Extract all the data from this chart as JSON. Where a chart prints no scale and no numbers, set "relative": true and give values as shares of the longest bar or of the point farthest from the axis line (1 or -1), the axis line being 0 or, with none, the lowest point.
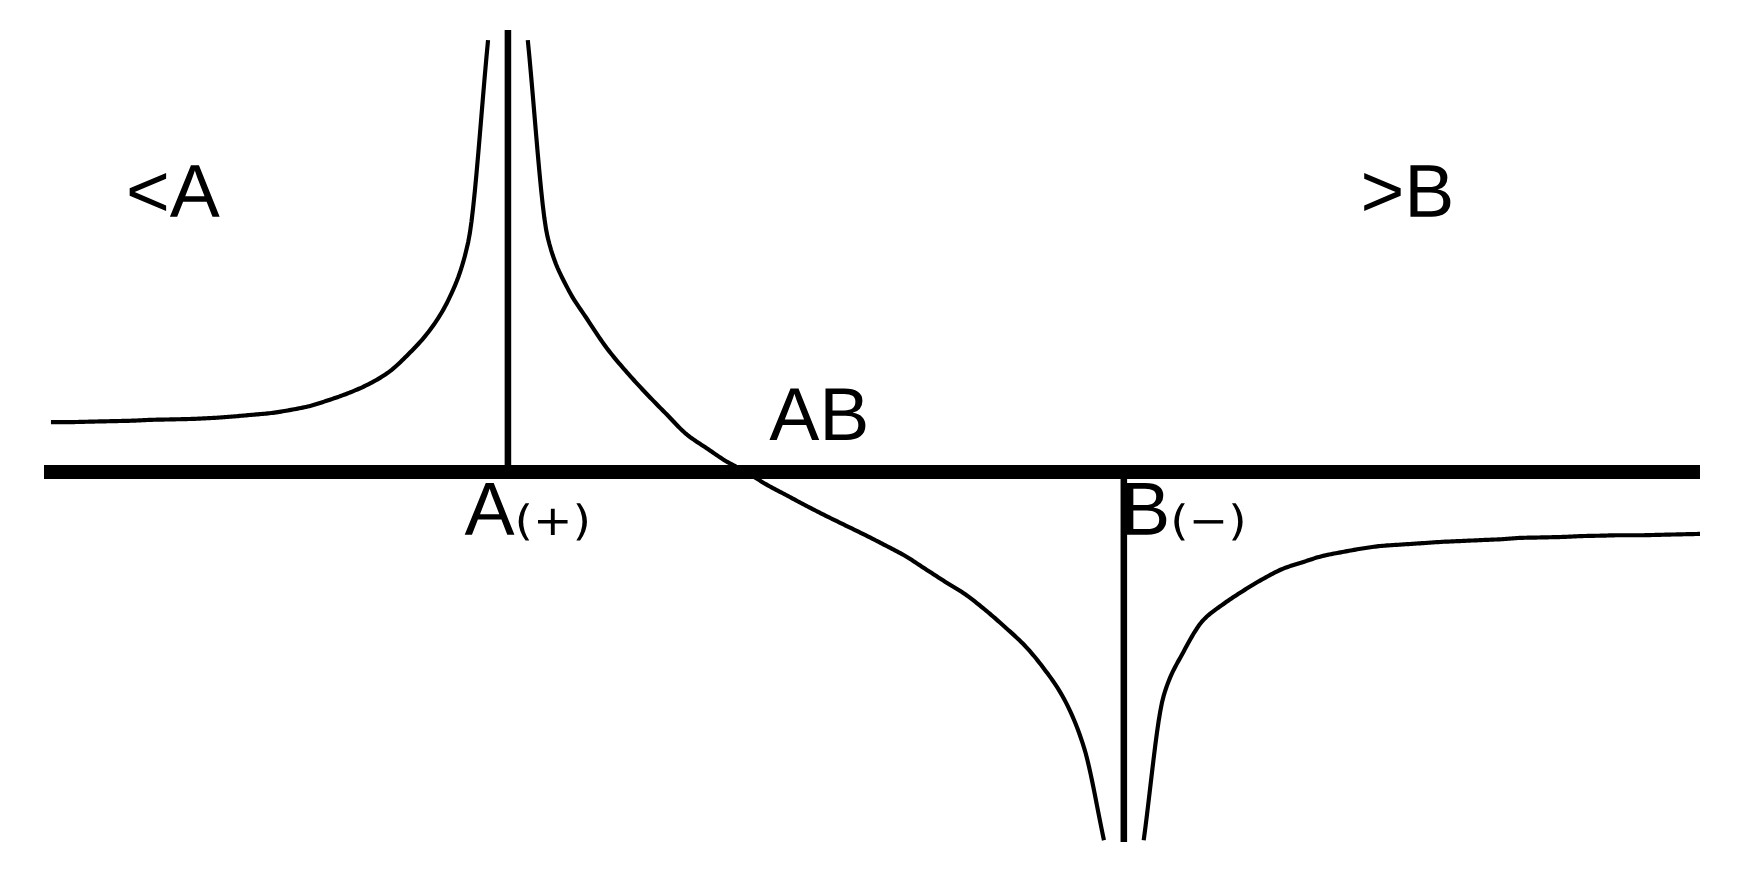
{
  "chart_data": {
    "type": "line",
    "relative": true,
    "categories": [
      null,
      null,
      null,
      null,
      null,
      null,
      null,
      null,
      null,
      null,
      null,
      null,
      null,
      null,
      null,
      null,
      null,
      null,
      null,
      null,
      null,
      null,
      null,
      null,
      "A₍₊₎",
      null,
      null,
      null,
      null,
      null,
      null,
      null,
      null,
      null,
      null,
      null,
      null,
      null,
      null,
      null,
      null,
      null,
      null,
      null,
      null,
      null,
      null,
      null,
      null,
      null,
      null,
      null,
      null,
      null,
      null,
      null,
      null,
      "B₍₋₎",
      null,
      null,
      null,
      null,
      null,
      null,
      null,
      null,
      null,
      null,
      null,
      null,
      null,
      null,
      null,
      null,
      null,
      null,
      null,
      null,
      null,
      null,
      null,
      null,
      null,
      null
    ],
    "series": [
      {
        "color": "#000000",
        "values": [
          0.113,
          0.113,
          0.114,
          0.115,
          0.116,
          0.118,
          0.119,
          0.12,
          0.122,
          0.125,
          0.129,
          0.133,
          0.14,
          0.149,
          0.163,
          0.179,
          0.199,
          0.226,
          0.267,
          0.317,
          0.389,
          0.52,
          0.977,
          null,
          0.977,
          0.531,
          0.416,
          0.345,
          0.279,
          0.225,
          0.176,
          0.13,
          0.085,
          0.054,
          0.024,
          0,
          -0.028,
          -0.052,
          -0.076,
          -0.099,
          -0.121,
          -0.143,
          -0.166,
          -0.19,
          -0.219,
          -0.248,
          -0.276,
          -0.311,
          -0.35,
          -0.392,
          -0.446,
          -0.514,
          -0.624,
          -0.833,
          null,
          -0.833,
          -0.507,
          -0.407,
          -0.335,
          -0.299,
          -0.269,
          -0.242,
          -0.219,
          -0.204,
          -0.19,
          -0.181,
          -0.173,
          -0.167,
          -0.164,
          -0.161,
          -0.158,
          -0.156,
          -0.154,
          -0.152,
          -0.149,
          -0.148,
          -0.147,
          -0.145,
          -0.144,
          -0.143,
          -0.143,
          -0.142,
          -0.141,
          -0.14
        ]
      },
      {
        "type": "bar",
        "color": "#000000",
        "values": [
          null,
          null,
          null,
          null,
          null,
          null,
          null,
          null,
          null,
          null,
          null,
          null,
          null,
          null,
          null,
          null,
          null,
          null,
          null,
          null,
          null,
          null,
          null,
          1,
          null,
          null,
          null,
          null,
          null,
          null,
          null,
          null,
          null,
          null,
          null,
          null,
          null,
          null,
          null,
          null,
          null,
          null,
          null,
          null,
          null,
          null,
          null,
          null,
          null,
          null,
          null,
          null,
          null,
          null,
          -0.837,
          null,
          null,
          null,
          null,
          null,
          null,
          null,
          null,
          null,
          null,
          null,
          null,
          null,
          null,
          null,
          null,
          null,
          null,
          null,
          null,
          null,
          null,
          null,
          null,
          null,
          null,
          null,
          null,
          null
        ]
      }
    ],
    "annotations": [
      "<A",
      ">B",
      "AB"
    ]
  }
}
